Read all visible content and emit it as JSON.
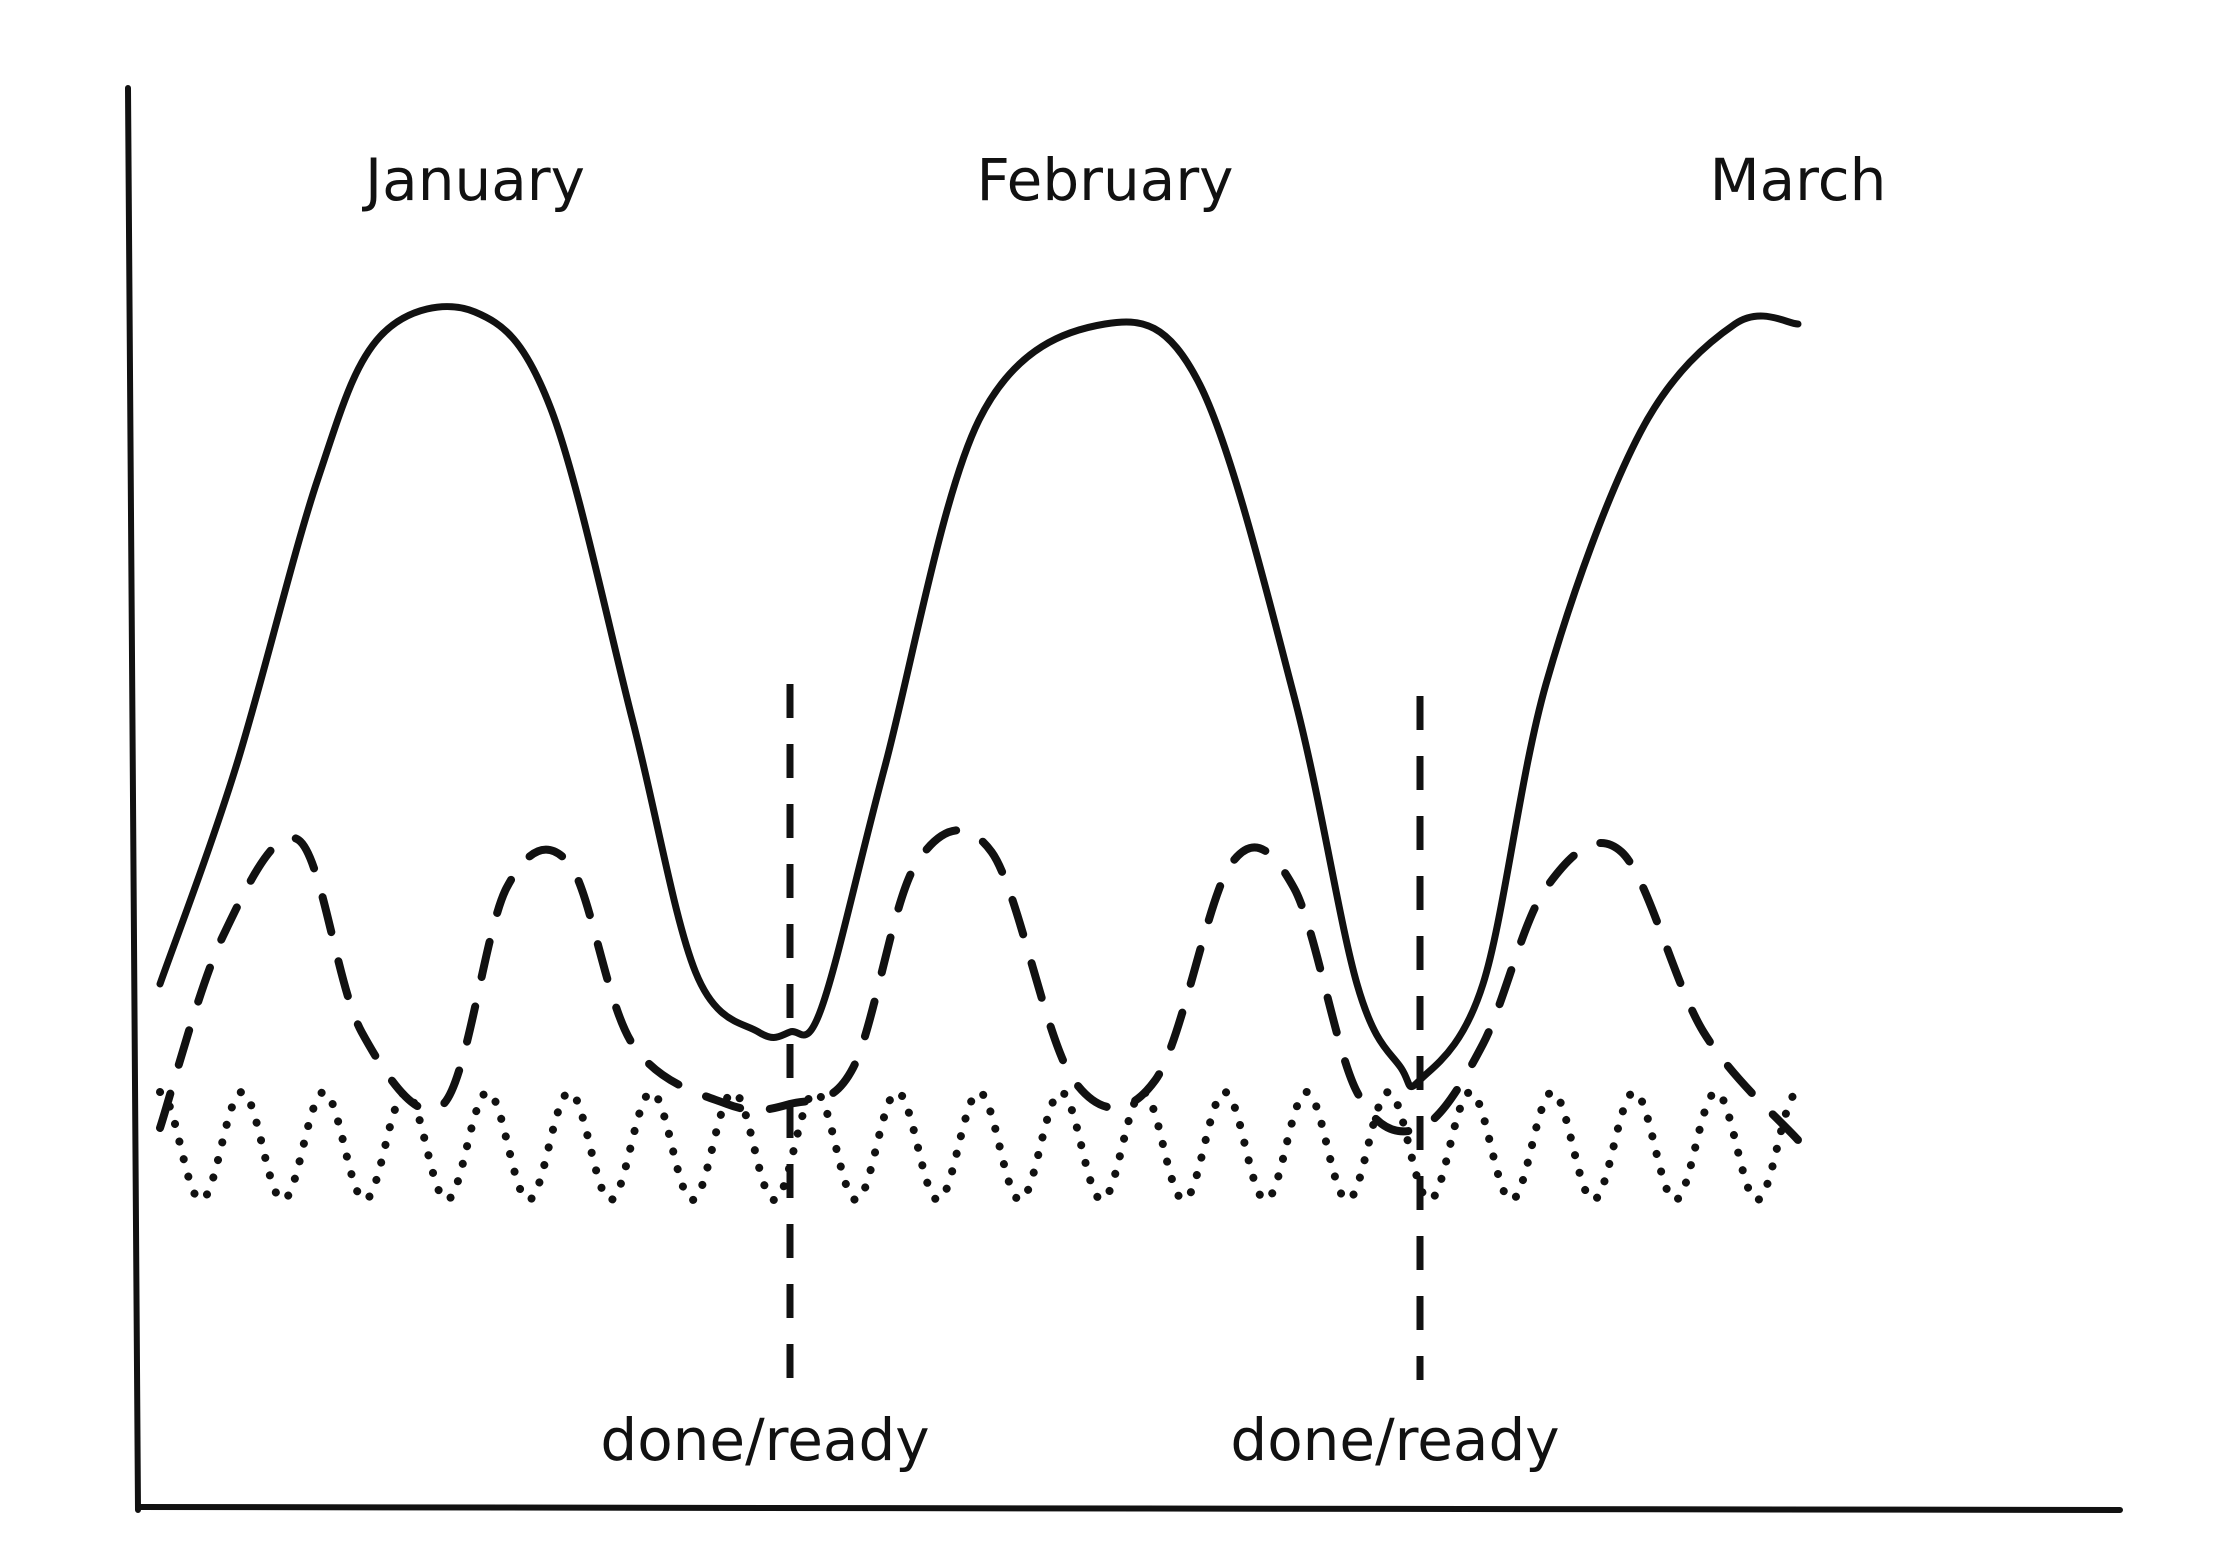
{
  "chart_data": {
    "type": "line",
    "title": "",
    "xlabel": "",
    "ylabel": "",
    "xlim": [
      0,
      3
    ],
    "ylim": [
      0,
      10
    ],
    "grid": false,
    "legend": "none",
    "month_labels": [
      {
        "text": "January",
        "x": 0.5
      },
      {
        "text": "February",
        "x": 1.5
      },
      {
        "text": "March",
        "x": 2.6
      }
    ],
    "markers": [
      {
        "text": "done/ready",
        "x": 1.0,
        "y_top": 6.3
      },
      {
        "text": "done/ready",
        "x": 2.0,
        "y_top": 6.2
      }
    ],
    "series": [
      {
        "style": "solid",
        "x": [
          0,
          0.12,
          0.25,
          0.35,
          0.5,
          0.62,
          0.75,
          0.85,
          0.95,
          1.0,
          1.05,
          1.15,
          1.3,
          1.5,
          1.65,
          1.8,
          1.9,
          1.97,
          2.0,
          2.1,
          2.2,
          2.35,
          2.5,
          2.6
        ],
        "y": [
          3.8,
          5.6,
          8.0,
          9.2,
          9.4,
          8.6,
          6.0,
          3.9,
          3.4,
          3.4,
          3.6,
          5.6,
          8.5,
          9.3,
          8.8,
          6.2,
          3.8,
          3.1,
          3.0,
          3.8,
          6.3,
          8.4,
          9.3,
          9.3
        ]
      },
      {
        "style": "dashed",
        "x": [
          0,
          0.1,
          0.22,
          0.32,
          0.45,
          0.55,
          0.65,
          0.75,
          0.9,
          1.0,
          1.1,
          1.2,
          1.32,
          1.45,
          1.58,
          1.7,
          1.8,
          1.9,
          2.0,
          2.1,
          2.2,
          2.32,
          2.45,
          2.6
        ],
        "y": [
          2.6,
          4.2,
          5.0,
          3.4,
          2.8,
          4.6,
          4.8,
          3.3,
          2.8,
          2.8,
          3.1,
          4.8,
          4.9,
          3.0,
          3.0,
          4.8,
          4.6,
          2.9,
          2.6,
          3.3,
          4.6,
          4.9,
          3.4,
          2.5
        ]
      },
      {
        "style": "dotted",
        "description": "rapid oscillation between roughly 2.0 and 2.9 across the full range",
        "x_start": 0,
        "x_end": 2.6,
        "cycles": 20,
        "y_min": 2.0,
        "y_max": 2.9
      }
    ]
  }
}
